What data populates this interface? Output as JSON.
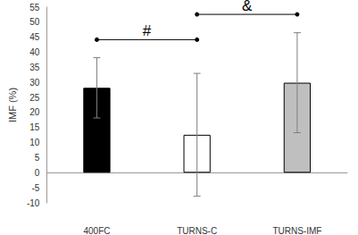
{
  "chart_data": {
    "type": "bar",
    "y_label": "IMF (%)",
    "categories": [
      "400FC",
      "TURNS-C",
      "TURNS-IMF"
    ],
    "values": [
      28.2,
      12.6,
      29.9
    ],
    "errors": [
      10.0,
      20.4,
      16.6
    ],
    "colors": [
      "#000000",
      "#ffffff",
      "#bfbfbf"
    ],
    "ylim": [
      -10,
      55
    ],
    "yticks": [
      -10,
      -5,
      0,
      5,
      10,
      15,
      20,
      25,
      30,
      35,
      40,
      45,
      50,
      55
    ],
    "grid": false,
    "annotations": [
      {
        "text": "#",
        "from": "400FC",
        "to": "TURNS-C",
        "y": 44.2
      },
      {
        "text": "&",
        "from": "TURNS-C",
        "to": "TURNS-IMF",
        "y": 52.6
      }
    ]
  }
}
